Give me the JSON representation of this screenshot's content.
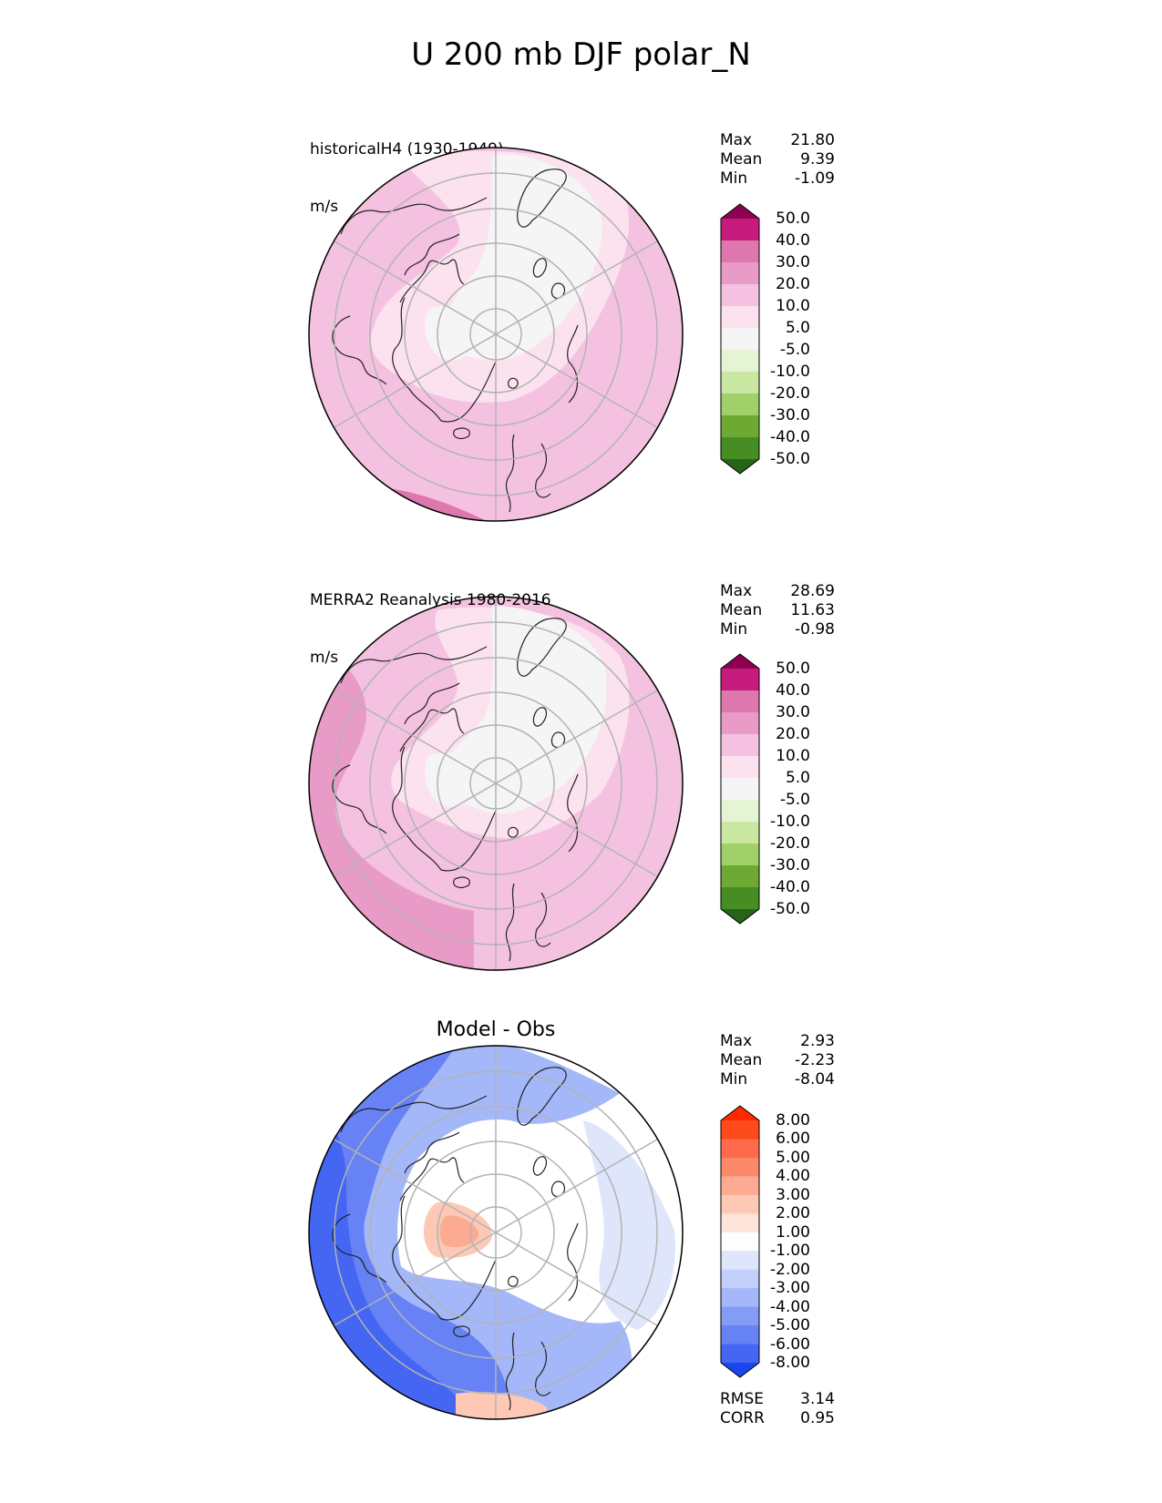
{
  "title": "U 200 mb DJF polar_N",
  "panels": [
    {
      "title_line1": "historicalH4 (1930-1949)",
      "title_line2": "m/s",
      "stats": [
        {
          "label": "Max",
          "value": "21.80"
        },
        {
          "label": "Mean",
          "value": "9.39"
        },
        {
          "label": "Min",
          "value": "-1.09"
        }
      ],
      "colorbar": {
        "levels": [
          "50.0",
          "40.0",
          "30.0",
          "20.0",
          "10.0",
          "5.0",
          "-5.0",
          "-10.0",
          "-20.0",
          "-30.0",
          "-40.0",
          "-50.0"
        ],
        "colors": [
          "#8e0152",
          "#c51b7d",
          "#de77ae",
          "#e99bc7",
          "#f4c2e0",
          "#fbe2ee",
          "#f5f5f5",
          "#e6f4d6",
          "#c9e7a1",
          "#9fd06a",
          "#6eaa33",
          "#468d23",
          "#276419"
        ]
      }
    },
    {
      "title_line1": "MERRA2 Reanalysis 1980-2016",
      "title_line2": "m/s",
      "stats": [
        {
          "label": "Max",
          "value": "28.69"
        },
        {
          "label": "Mean",
          "value": "11.63"
        },
        {
          "label": "Min",
          "value": "-0.98"
        }
      ],
      "colorbar": {
        "levels": [
          "50.0",
          "40.0",
          "30.0",
          "20.0",
          "10.0",
          "5.0",
          "-5.0",
          "-10.0",
          "-20.0",
          "-30.0",
          "-40.0",
          "-50.0"
        ],
        "colors": [
          "#8e0152",
          "#c51b7d",
          "#de77ae",
          "#e99bc7",
          "#f4c2e0",
          "#fbe2ee",
          "#f5f5f5",
          "#e6f4d6",
          "#c9e7a1",
          "#9fd06a",
          "#6eaa33",
          "#468d23",
          "#276419"
        ]
      }
    },
    {
      "title_line1": "Model - Obs",
      "stats": [
        {
          "label": "Max",
          "value": "2.93"
        },
        {
          "label": "Mean",
          "value": "-2.23"
        },
        {
          "label": "Min",
          "value": "-8.04"
        }
      ],
      "extra_stats": [
        {
          "label": "RMSE",
          "value": "3.14"
        },
        {
          "label": "CORR",
          "value": "0.95"
        }
      ],
      "colorbar": {
        "levels": [
          "8.00",
          "6.00",
          "5.00",
          "4.00",
          "3.00",
          "2.00",
          "1.00",
          "-1.00",
          "-2.00",
          "-3.00",
          "-4.00",
          "-5.00",
          "-6.00",
          "-8.00"
        ],
        "colors": [
          "#ff2800",
          "#ff4a1c",
          "#fe6a4a",
          "#fc8a6a",
          "#fcab92",
          "#fdc9b6",
          "#fde3d9",
          "#fdfdfd",
          "#dfe6fb",
          "#c3d0fb",
          "#a4b7f9",
          "#859cf7",
          "#6682f4",
          "#4566f2",
          "#1a46f0"
        ]
      }
    }
  ]
}
